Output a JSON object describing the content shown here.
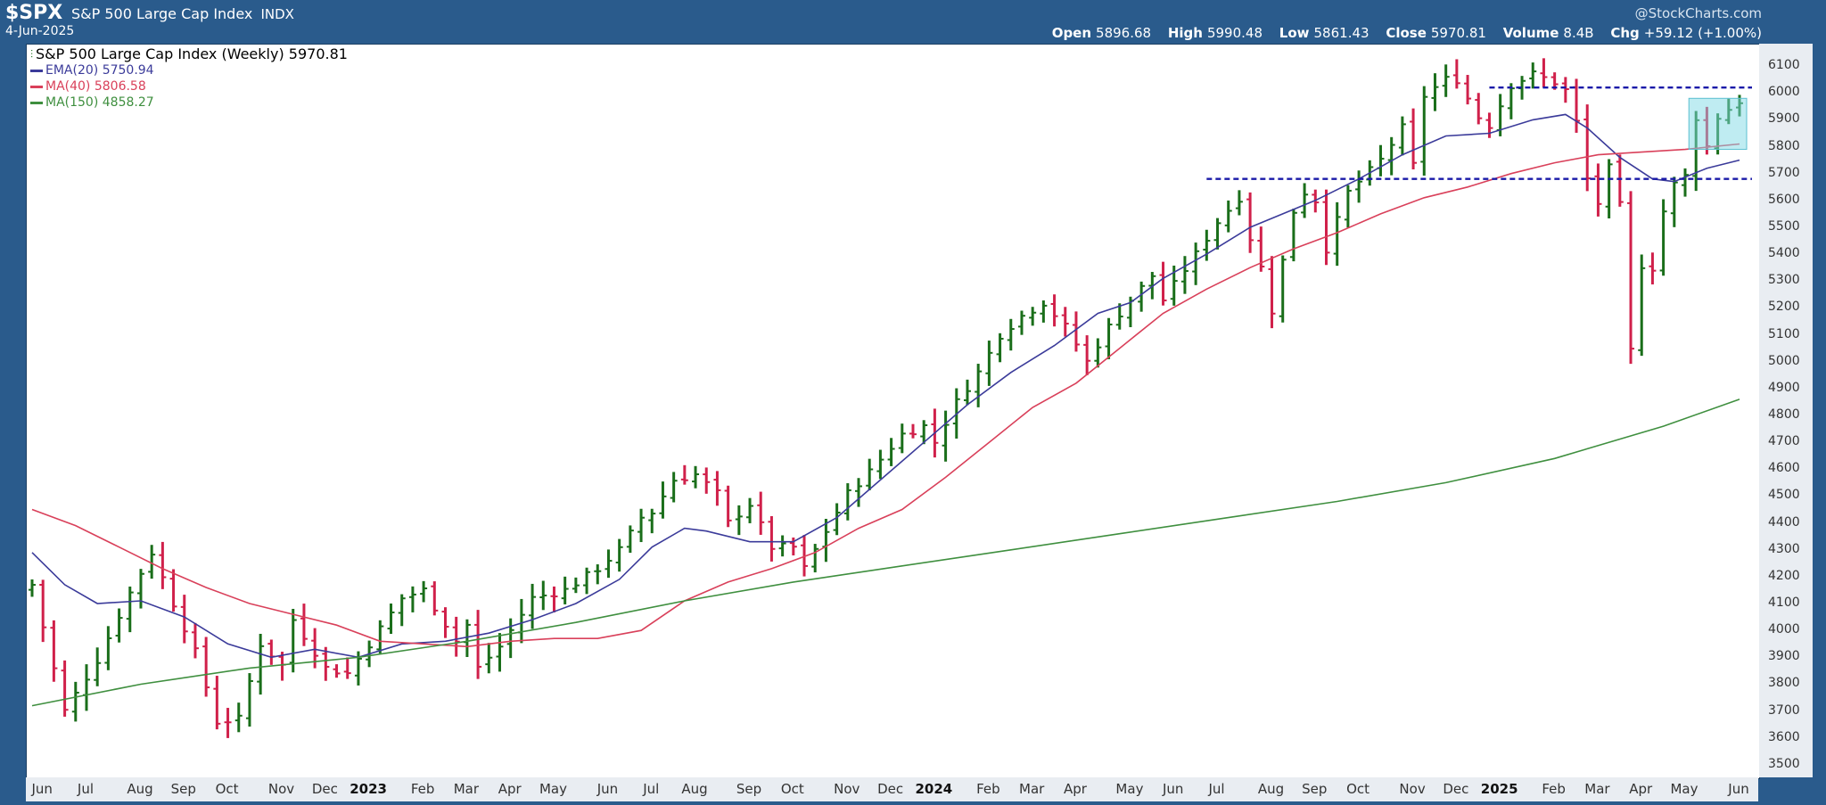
{
  "header": {
    "ticker": "$SPX",
    "index_name": "S&P 500 Large Cap Index",
    "exchange": "INDX",
    "date": "4-Jun-2025",
    "brand": "@StockCharts.com",
    "ohlc": [
      {
        "key": "Open",
        "value": "5896.68"
      },
      {
        "key": "High",
        "value": "5990.48"
      },
      {
        "key": "Low",
        "value": "5861.43"
      },
      {
        "key": "Close",
        "value": "5970.81"
      },
      {
        "key": "Volume",
        "value": "8.4B"
      },
      {
        "key": "Chg",
        "value": "+59.12 (+1.00%)"
      }
    ]
  },
  "legend": {
    "title": "S&P 500 Large Cap Index (Weekly) 5970.81",
    "items": [
      {
        "label": "EMA(20) 5750.94",
        "color": "#3b3b9a"
      },
      {
        "label": "MA(40) 5806.58",
        "color": "#d9405a"
      },
      {
        "label": "MA(150) 4858.27",
        "color": "#3f8f3f"
      }
    ]
  },
  "chart_data": {
    "type": "ohlc",
    "title": "S&P 500 Large Cap Index (Weekly) 5970.81",
    "ylim": [
      3450,
      6180
    ],
    "y_ticks": [
      3500,
      3600,
      3700,
      3800,
      3900,
      4000,
      4100,
      4200,
      4300,
      4400,
      4500,
      4600,
      4700,
      4800,
      4900,
      5000,
      5100,
      5200,
      5300,
      5400,
      5500,
      5600,
      5700,
      5800,
      5900,
      6000,
      6100
    ],
    "x_ticks": [
      {
        "label": "Jun",
        "week": 1,
        "year": false
      },
      {
        "label": "Jul",
        "week": 5,
        "year": false
      },
      {
        "label": "Aug",
        "week": 10,
        "year": false
      },
      {
        "label": "Sep",
        "week": 14,
        "year": false
      },
      {
        "label": "Oct",
        "week": 18,
        "year": false
      },
      {
        "label": "Nov",
        "week": 23,
        "year": false
      },
      {
        "label": "Dec",
        "week": 27,
        "year": false
      },
      {
        "label": "2023",
        "week": 31,
        "year": true
      },
      {
        "label": "Feb",
        "week": 36,
        "year": false
      },
      {
        "label": "Mar",
        "week": 40,
        "year": false
      },
      {
        "label": "Apr",
        "week": 44,
        "year": false
      },
      {
        "label": "May",
        "week": 48,
        "year": false
      },
      {
        "label": "Jun",
        "week": 53,
        "year": false
      },
      {
        "label": "Jul",
        "week": 57,
        "year": false
      },
      {
        "label": "Aug",
        "week": 61,
        "year": false
      },
      {
        "label": "Sep",
        "week": 66,
        "year": false
      },
      {
        "label": "Oct",
        "week": 70,
        "year": false
      },
      {
        "label": "Nov",
        "week": 75,
        "year": false
      },
      {
        "label": "Dec",
        "week": 79,
        "year": false
      },
      {
        "label": "2024",
        "week": 83,
        "year": true
      },
      {
        "label": "Feb",
        "week": 88,
        "year": false
      },
      {
        "label": "Mar",
        "week": 92,
        "year": false
      },
      {
        "label": "Apr",
        "week": 96,
        "year": false
      },
      {
        "label": "May",
        "week": 101,
        "year": false
      },
      {
        "label": "Jun",
        "week": 105,
        "year": false
      },
      {
        "label": "Jul",
        "week": 109,
        "year": false
      },
      {
        "label": "Aug",
        "week": 114,
        "year": false
      },
      {
        "label": "Sep",
        "week": 118,
        "year": false
      },
      {
        "label": "Oct",
        "week": 122,
        "year": false
      },
      {
        "label": "Nov",
        "week": 127,
        "year": false
      },
      {
        "label": "Dec",
        "week": 131,
        "year": false
      },
      {
        "label": "2025",
        "week": 135,
        "year": true
      },
      {
        "label": "Feb",
        "week": 140,
        "year": false
      },
      {
        "label": "Mar",
        "week": 144,
        "year": false
      },
      {
        "label": "Apr",
        "week": 148,
        "year": false
      },
      {
        "label": "May",
        "week": 152,
        "year": false
      },
      {
        "label": "Jun",
        "week": 157,
        "year": false
      }
    ],
    "series": [
      {
        "name": "S&P 500 Large Cap Index (Weekly)",
        "kind": "ohlc",
        "up_color": "#1a6e1a",
        "down_color": "#d0204a"
      },
      {
        "name": "EMA(20)",
        "kind": "line",
        "color": "#3b3b9a",
        "points": [
          [
            0,
            4290
          ],
          [
            3,
            4170
          ],
          [
            6,
            4100
          ],
          [
            10,
            4110
          ],
          [
            14,
            4050
          ],
          [
            18,
            3950
          ],
          [
            22,
            3900
          ],
          [
            26,
            3930
          ],
          [
            30,
            3900
          ],
          [
            34,
            3950
          ],
          [
            38,
            3960
          ],
          [
            42,
            3990
          ],
          [
            46,
            4040
          ],
          [
            50,
            4100
          ],
          [
            54,
            4190
          ],
          [
            57,
            4310
          ],
          [
            60,
            4380
          ],
          [
            62,
            4370
          ],
          [
            66,
            4330
          ],
          [
            70,
            4330
          ],
          [
            74,
            4420
          ],
          [
            78,
            4560
          ],
          [
            82,
            4700
          ],
          [
            86,
            4840
          ],
          [
            90,
            4960
          ],
          [
            94,
            5060
          ],
          [
            98,
            5180
          ],
          [
            101,
            5220
          ],
          [
            104,
            5310
          ],
          [
            108,
            5400
          ],
          [
            112,
            5500
          ],
          [
            115,
            5550
          ],
          [
            118,
            5600
          ],
          [
            122,
            5680
          ],
          [
            126,
            5770
          ],
          [
            130,
            5840
          ],
          [
            134,
            5850
          ],
          [
            138,
            5900
          ],
          [
            141,
            5920
          ],
          [
            143,
            5870
          ],
          [
            146,
            5760
          ],
          [
            149,
            5680
          ],
          [
            151,
            5670
          ],
          [
            154,
            5720
          ],
          [
            157,
            5750
          ]
        ]
      },
      {
        "name": "MA(40)",
        "kind": "line",
        "color": "#d9405a",
        "points": [
          [
            0,
            4450
          ],
          [
            4,
            4390
          ],
          [
            8,
            4310
          ],
          [
            12,
            4230
          ],
          [
            16,
            4160
          ],
          [
            20,
            4100
          ],
          [
            24,
            4060
          ],
          [
            28,
            4020
          ],
          [
            32,
            3960
          ],
          [
            36,
            3950
          ],
          [
            40,
            3940
          ],
          [
            44,
            3960
          ],
          [
            48,
            3970
          ],
          [
            52,
            3970
          ],
          [
            56,
            4000
          ],
          [
            60,
            4110
          ],
          [
            64,
            4180
          ],
          [
            68,
            4230
          ],
          [
            72,
            4290
          ],
          [
            76,
            4380
          ],
          [
            80,
            4450
          ],
          [
            84,
            4570
          ],
          [
            88,
            4700
          ],
          [
            92,
            4830
          ],
          [
            96,
            4920
          ],
          [
            100,
            5050
          ],
          [
            104,
            5180
          ],
          [
            108,
            5270
          ],
          [
            112,
            5350
          ],
          [
            116,
            5420
          ],
          [
            120,
            5480
          ],
          [
            124,
            5550
          ],
          [
            128,
            5610
          ],
          [
            132,
            5650
          ],
          [
            136,
            5700
          ],
          [
            140,
            5740
          ],
          [
            144,
            5770
          ],
          [
            148,
            5780
          ],
          [
            152,
            5790
          ],
          [
            157,
            5810
          ]
        ]
      },
      {
        "name": "MA(150)",
        "kind": "line",
        "color": "#3f8f3f",
        "points": [
          [
            0,
            3720
          ],
          [
            10,
            3800
          ],
          [
            20,
            3860
          ],
          [
            30,
            3900
          ],
          [
            40,
            3960
          ],
          [
            50,
            4030
          ],
          [
            60,
            4110
          ],
          [
            70,
            4180
          ],
          [
            80,
            4240
          ],
          [
            90,
            4300
          ],
          [
            100,
            4360
          ],
          [
            110,
            4420
          ],
          [
            120,
            4480
          ],
          [
            130,
            4550
          ],
          [
            140,
            4640
          ],
          [
            150,
            4760
          ],
          [
            157,
            4860
          ]
        ]
      }
    ],
    "ohlc_anchors": [
      [
        0,
        4170
      ],
      [
        3,
        3700
      ],
      [
        6,
        3890
      ],
      [
        9,
        4140
      ],
      [
        11,
        4290
      ],
      [
        13,
        4100
      ],
      [
        15,
        3920
      ],
      [
        17,
        3660
      ],
      [
        19,
        3670
      ],
      [
        21,
        3950
      ],
      [
        23,
        3870
      ],
      [
        24,
        4040
      ],
      [
        27,
        3860
      ],
      [
        29,
        3840
      ],
      [
        31,
        3950
      ],
      [
        34,
        4120
      ],
      [
        36,
        4150
      ],
      [
        39,
        3960
      ],
      [
        40,
        4020
      ],
      [
        41,
        3860
      ],
      [
        43,
        3940
      ],
      [
        46,
        4120
      ],
      [
        49,
        4150
      ],
      [
        52,
        4230
      ],
      [
        54,
        4300
      ],
      [
        56,
        4420
      ],
      [
        57,
        4440
      ],
      [
        59,
        4560
      ],
      [
        61,
        4580
      ],
      [
        63,
        4510
      ],
      [
        64,
        4400
      ],
      [
        66,
        4470
      ],
      [
        68,
        4310
      ],
      [
        70,
        4310
      ],
      [
        71,
        4230
      ],
      [
        73,
        4370
      ],
      [
        75,
        4510
      ],
      [
        77,
        4590
      ],
      [
        80,
        4730
      ],
      [
        82,
        4760
      ],
      [
        83,
        4700
      ],
      [
        85,
        4850
      ],
      [
        87,
        4960
      ],
      [
        89,
        5100
      ],
      [
        91,
        5170
      ],
      [
        93,
        5220
      ],
      [
        95,
        5130
      ],
      [
        97,
        5000
      ],
      [
        99,
        5130
      ],
      [
        101,
        5230
      ],
      [
        103,
        5320
      ],
      [
        104,
        5230
      ],
      [
        107,
        5400
      ],
      [
        109,
        5520
      ],
      [
        111,
        5610
      ],
      [
        112,
        5460
      ],
      [
        113,
        5350
      ],
      [
        114,
        5190
      ],
      [
        116,
        5560
      ],
      [
        117,
        5630
      ],
      [
        118,
        5600
      ],
      [
        119,
        5420
      ],
      [
        121,
        5630
      ],
      [
        124,
        5750
      ],
      [
        126,
        5870
      ],
      [
        127,
        5730
      ],
      [
        128,
        5990
      ],
      [
        130,
        6050
      ],
      [
        131,
        6050
      ],
      [
        133,
        5910
      ],
      [
        134,
        5880
      ],
      [
        136,
        6030
      ],
      [
        138,
        6070
      ],
      [
        140,
        6040
      ],
      [
        141,
        6010
      ],
      [
        142,
        5890
      ],
      [
        143,
        5680
      ],
      [
        144,
        5590
      ],
      [
        145,
        5720
      ],
      [
        146,
        5580
      ],
      [
        147,
        5040
      ],
      [
        148,
        5360
      ],
      [
        149,
        5350
      ],
      [
        150,
        5560
      ],
      [
        151,
        5660
      ],
      [
        152,
        5690
      ],
      [
        153,
        5910
      ],
      [
        154,
        5800
      ],
      [
        155,
        5910
      ],
      [
        157,
        5970
      ]
    ],
    "annotations": [
      {
        "type": "hline",
        "y": 6020,
        "x_from": 134,
        "x_to": 157,
        "style": "dashed",
        "color": "#1a1aa8"
      },
      {
        "type": "hline",
        "y": 5680,
        "x_from": 108,
        "x_to": 157,
        "style": "dashed",
        "color": "#1a1aa8"
      },
      {
        "type": "box",
        "x_from": 153,
        "x_to": 157,
        "y_from": 5790,
        "y_to": 5980,
        "color": "#7fd9e6"
      }
    ],
    "weeks": 158
  }
}
